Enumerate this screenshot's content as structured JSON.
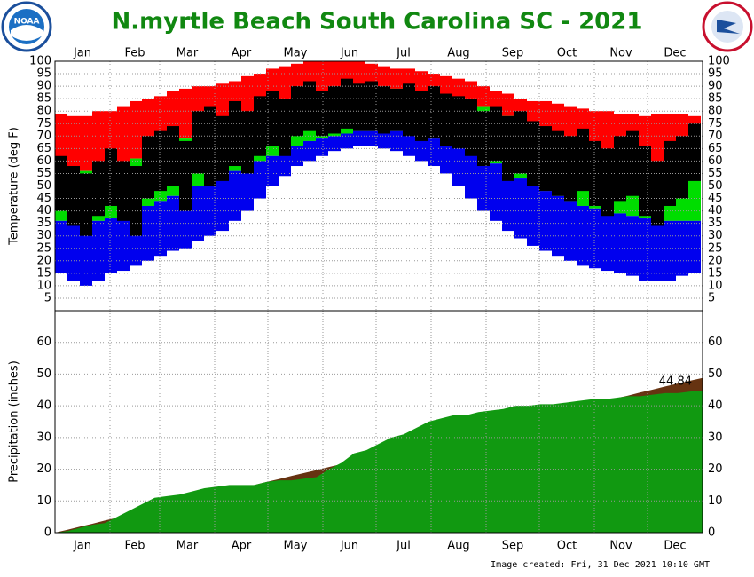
{
  "header": {
    "title": "N.myrtle Beach South Carolina SC - 2021",
    "logo_left": "NOAA"
  },
  "footer": "Image created: Fri, 31 Dec 2021 10:10 GMT",
  "chart_data": [
    {
      "type": "range",
      "y_label": "Temperature (deg F)",
      "month_labels": [
        "Jan",
        "Feb",
        "Mar",
        "Apr",
        "May",
        "Jun",
        "Jul",
        "Aug",
        "Sep",
        "Oct",
        "Nov",
        "Dec"
      ],
      "ylim": [
        0,
        100
      ],
      "yticks": [
        5,
        10,
        15,
        20,
        25,
        30,
        35,
        40,
        45,
        50,
        55,
        60,
        65,
        70,
        75,
        80,
        85,
        90,
        95,
        100
      ],
      "grid": true,
      "record_high": {
        "color": "#ff0000",
        "values": [
          79,
          78,
          78,
          80,
          80,
          82,
          84,
          85,
          86,
          88,
          89,
          90,
          90,
          91,
          92,
          94,
          95,
          97,
          98,
          99,
          100,
          100,
          100,
          100,
          100,
          99,
          98,
          97,
          97,
          96,
          95,
          94,
          93,
          92,
          90,
          88,
          87,
          85,
          84,
          84,
          83,
          82,
          81,
          80,
          80,
          79,
          79,
          78,
          79,
          79,
          79,
          78
        ]
      },
      "normal_high": {
        "color": "#00dd00",
        "values": [
          57,
          56,
          56,
          57,
          58,
          59,
          61,
          63,
          65,
          67,
          69,
          71,
          73,
          75,
          77,
          78,
          80,
          82,
          83,
          85,
          86,
          87,
          88,
          89,
          89,
          89,
          89,
          89,
          88,
          88,
          87,
          86,
          85,
          84,
          82,
          80,
          78,
          76,
          74,
          72,
          70,
          68,
          66,
          64,
          62,
          61,
          60,
          59,
          58,
          58,
          57,
          57
        ]
      },
      "normal_low": {
        "color": "#0000ee",
        "values": [
          36,
          35,
          35,
          36,
          37,
          38,
          40,
          42,
          44,
          46,
          48,
          50,
          52,
          54,
          56,
          58,
          60,
          62,
          64,
          66,
          68,
          69,
          70,
          71,
          72,
          72,
          72,
          72,
          71,
          70,
          69,
          68,
          66,
          64,
          62,
          59,
          56,
          53,
          50,
          48,
          46,
          44,
          42,
          41,
          40,
          39,
          38,
          37,
          37,
          36,
          36,
          36
        ]
      },
      "record_low": {
        "values": [
          15,
          12,
          10,
          12,
          15,
          16,
          18,
          20,
          22,
          24,
          25,
          28,
          30,
          32,
          36,
          40,
          45,
          50,
          54,
          58,
          60,
          62,
          64,
          65,
          66,
          66,
          65,
          64,
          62,
          60,
          58,
          55,
          50,
          45,
          40,
          36,
          32,
          29,
          26,
          24,
          22,
          20,
          18,
          17,
          16,
          15,
          14,
          12,
          12,
          12,
          14,
          15
        ]
      },
      "observed": {
        "color": "#000000",
        "high": [
          62,
          58,
          55,
          60,
          65,
          60,
          58,
          70,
          72,
          74,
          68,
          80,
          82,
          78,
          84,
          80,
          86,
          88,
          85,
          90,
          92,
          88,
          90,
          93,
          91,
          92,
          90,
          89,
          91,
          88,
          90,
          87,
          86,
          85,
          80,
          82,
          78,
          80,
          76,
          74,
          72,
          70,
          73,
          68,
          65,
          70,
          72,
          66,
          60,
          68,
          70,
          75
        ],
        "low": [
          40,
          34,
          30,
          38,
          42,
          36,
          30,
          45,
          48,
          50,
          40,
          55,
          50,
          52,
          58,
          55,
          62,
          66,
          62,
          70,
          72,
          70,
          71,
          73,
          72,
          72,
          71,
          72,
          70,
          68,
          69,
          66,
          65,
          62,
          58,
          60,
          52,
          55,
          50,
          48,
          46,
          44,
          48,
          42,
          38,
          44,
          46,
          38,
          34,
          42,
          45,
          52
        ]
      }
    },
    {
      "type": "area",
      "y_label": "Precipitation (inches)",
      "month_labels": [
        "Jan",
        "Feb",
        "Mar",
        "Apr",
        "May",
        "Jun",
        "Jul",
        "Aug",
        "Sep",
        "Oct",
        "Nov",
        "Dec"
      ],
      "ylim": [
        0,
        70
      ],
      "yticks": [
        0,
        10,
        20,
        30,
        40,
        50,
        60
      ],
      "grid": true,
      "series": [
        {
          "color": "#663311",
          "values": [
            0.9,
            1.9,
            2.8,
            3.8,
            4.7,
            5.6,
            6.6,
            7.5,
            8.5,
            9.4,
            10.3,
            11.3,
            12.2,
            13.2,
            14.1,
            15,
            16,
            16.9,
            17.9,
            18.8,
            19.7,
            20.7,
            21.6,
            22.6,
            23.5,
            24.4,
            25.4,
            26.3,
            27.3,
            28.2,
            29.1,
            30.1,
            31,
            32,
            32.9,
            33.8,
            34.8,
            35.7,
            36.7,
            37.6,
            38.5,
            39.5,
            40.4,
            41.4,
            42.3,
            43.2,
            44.2,
            45.1,
            46.1,
            47,
            47.9,
            48.8
          ]
        },
        {
          "color": "#119911",
          "values": [
            0.5,
            1.5,
            2.5,
            3,
            5,
            7,
            9,
            11,
            11.5,
            12,
            13,
            14,
            14.5,
            15,
            15,
            15,
            16,
            16.5,
            16.5,
            17,
            17.5,
            20,
            22,
            25,
            26,
            28,
            30,
            31,
            33,
            35,
            36,
            37,
            37,
            38,
            38.5,
            39,
            40,
            40,
            40.5,
            40.5,
            41,
            41.5,
            42,
            42,
            42.5,
            43,
            43,
            43.5,
            44,
            44,
            44.5,
            44.84
          ],
          "value_labels_last": "44.84"
        }
      ]
    }
  ]
}
